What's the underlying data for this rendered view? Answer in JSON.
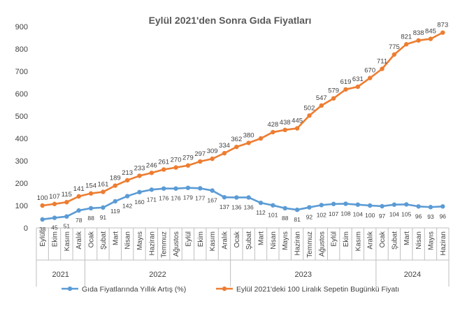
{
  "chart_data": {
    "type": "line",
    "title": "Eylül 2021'den Sonra Gıda Fiyatları",
    "xlabel": "",
    "ylabel": "",
    "ylim": [
      0,
      900
    ],
    "yticks": [
      0,
      100,
      200,
      300,
      400,
      500,
      600,
      700,
      800,
      900
    ],
    "grid": false,
    "legend_position": "bottom",
    "categories": [
      "Eylül",
      "Ekim",
      "Kasım",
      "Aralık",
      "Ocak",
      "Şubat",
      "Mart",
      "Nisan",
      "Mayıs",
      "Haziran",
      "Temmuz",
      "Ağustos",
      "Eylül",
      "Ekim",
      "Kasım",
      "Aralık",
      "Ocak",
      "Şubat",
      "Mart",
      "Nisan",
      "Mayıs",
      "Haziran",
      "Temmuz",
      "Ağustos",
      "Eylül",
      "Ekim",
      "Kasım",
      "Aralık",
      "Ocak",
      "Şubat",
      "Mart",
      "Nisan",
      "Mayıs",
      "Haziran"
    ],
    "year_groups": [
      {
        "label": "2021",
        "start": 0,
        "end": 3
      },
      {
        "label": "2022",
        "start": 4,
        "end": 15
      },
      {
        "label": "2023",
        "start": 16,
        "end": 27
      },
      {
        "label": "2024",
        "start": 28,
        "end": 33
      }
    ],
    "series": [
      {
        "name": "Gıda Fiyatlarında Yıllık Artış (%)",
        "color": "#5B9BD5",
        "values": [
          38,
          45,
          51,
          78,
          88,
          91,
          119,
          142,
          160,
          171,
          176,
          176,
          179,
          177,
          167,
          137,
          136,
          136,
          112,
          101,
          88,
          81,
          92,
          102,
          107,
          108,
          104,
          100,
          97,
          104,
          105,
          96,
          93,
          96
        ],
        "labels": [
          "38",
          "45",
          "51",
          "78",
          "88",
          "91",
          "119",
          "142",
          "160",
          "171",
          "176",
          "176",
          "179",
          "177",
          "167",
          "137",
          "136",
          "136",
          "112",
          "101",
          "88",
          "81",
          "92",
          "102",
          "107",
          "108",
          "104",
          "100",
          "97",
          "104",
          "105",
          "96",
          "93",
          "96"
        ]
      },
      {
        "name": "Eylül 2021'deki 100 Liralık Sepetin Bugünkü  Fiyatı",
        "color": "#ED7D31",
        "values": [
          100,
          107,
          115,
          141,
          154,
          161,
          189,
          213,
          233,
          246,
          261,
          270,
          279,
          297,
          309,
          334,
          362,
          380,
          400,
          428,
          438,
          445,
          502,
          547,
          579,
          619,
          631,
          670,
          711,
          775,
          821,
          838,
          845,
          873
        ],
        "labels": [
          "100",
          "107",
          "115",
          "141",
          "154",
          "161",
          "189",
          "213",
          "233",
          "246",
          "261",
          "270",
          "279",
          "297",
          "309",
          "334",
          "362",
          "380",
          "",
          "428",
          "438",
          "445",
          "502",
          "547",
          "579",
          "619",
          "631",
          "670",
          "711",
          "775",
          "821",
          "838",
          "845",
          "873"
        ]
      }
    ]
  }
}
